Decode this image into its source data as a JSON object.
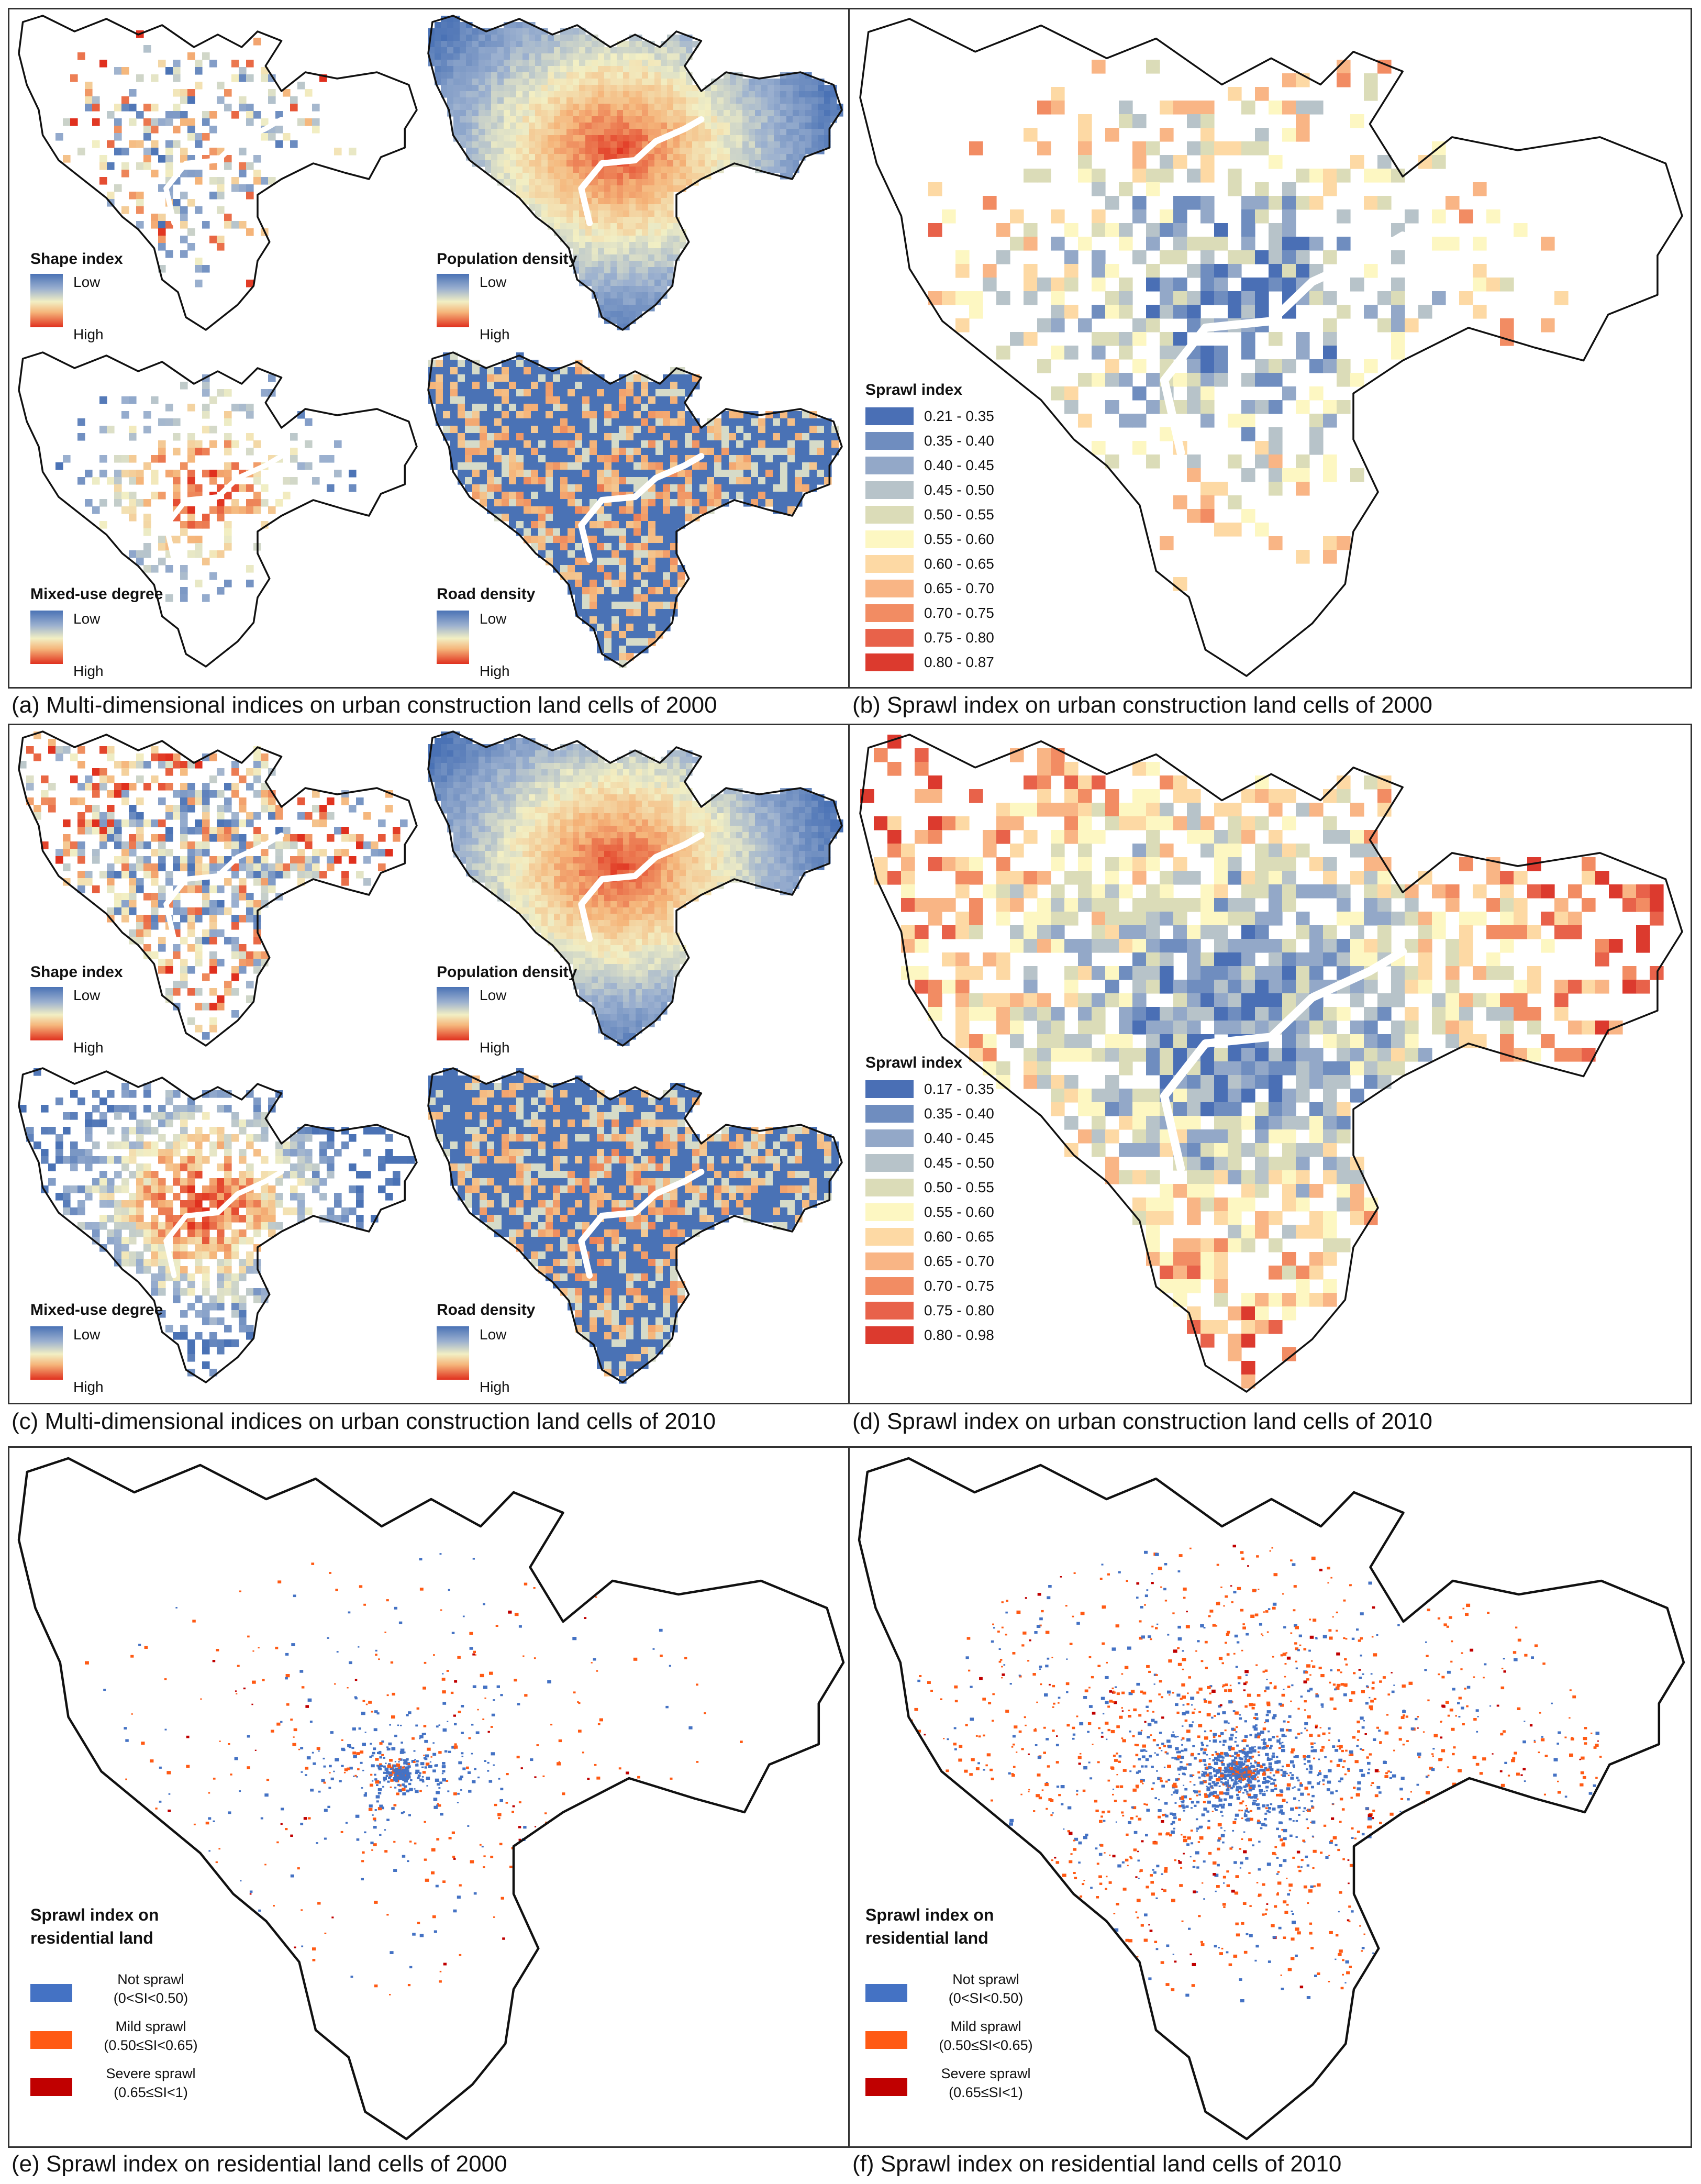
{
  "captions": {
    "a": "(a) Multi-dimensional indices on urban construction land cells of 2000",
    "b": "(b) Sprawl index on urban construction land cells of 2000",
    "c": "(c) Multi-dimensional indices on urban construction land cells of 2010",
    "d": "(d) Sprawl index on urban construction land cells of 2010",
    "e": "(e) Sprawl index on residential land cells of 2000",
    "f": "(f) Sprawl index on residential land cells of 2010"
  },
  "submaps": {
    "shape": "Shape index",
    "population": "Population density",
    "mixed": "Mixed-use degree",
    "road": "Road density",
    "low": "Low",
    "high": "High"
  },
  "legend_b": {
    "title": "Sprawl index",
    "classes": [
      "0.21 - 0.35",
      "0.35 - 0.40",
      "0.40 - 0.45",
      "0.45 - 0.50",
      "0.50 - 0.55",
      "0.55 - 0.60",
      "0.60 - 0.65",
      "0.65 - 0.70",
      "0.70 - 0.75",
      "0.75 - 0.80",
      "0.80 - 0.87"
    ]
  },
  "legend_d": {
    "title": "Sprawl index",
    "classes": [
      "0.17 - 0.35",
      "0.35 - 0.40",
      "0.40 - 0.45",
      "0.45 - 0.50",
      "0.50 - 0.55",
      "0.55 - 0.60",
      "0.60 - 0.65",
      "0.65 - 0.70",
      "0.70 - 0.75",
      "0.75 - 0.80",
      "0.80 - 0.98"
    ]
  },
  "class_colors": [
    "#4a6fb5",
    "#6f8dbf",
    "#93a8c8",
    "#b7c3c9",
    "#dbdcb8",
    "#fdf7c2",
    "#fdd9a4",
    "#f9b585",
    "#f28c63",
    "#e8624a",
    "#dc3a2e"
  ],
  "legend_res": {
    "title_line1": "Sprawl index on",
    "title_line2": "residential land",
    "items": [
      {
        "name": "Not sprawl",
        "range": "(0<SI<0.50)",
        "color": "#4472c4"
      },
      {
        "name": "Mild sprawl",
        "range": "(0.50≤SI<0.65)",
        "color": "#ff5a14"
      },
      {
        "name": "Severe sprawl",
        "range": "(0.65≤SI<1)",
        "color": "#c00000"
      }
    ]
  }
}
